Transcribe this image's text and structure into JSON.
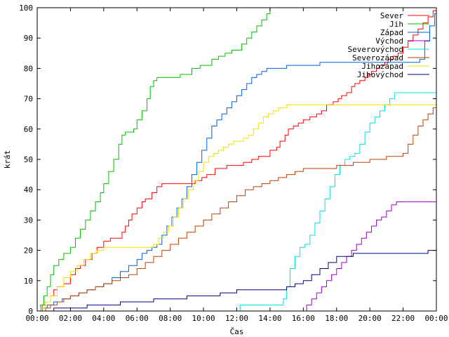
{
  "chart_data": {
    "type": "line",
    "xlabel": "Čas",
    "ylabel": "krát",
    "xlim": [
      0,
      24
    ],
    "ylim": [
      0,
      100
    ],
    "x_ticks": [
      {
        "v": 0,
        "label": "00:00"
      },
      {
        "v": 2,
        "label": "02:00"
      },
      {
        "v": 4,
        "label": "04:00"
      },
      {
        "v": 6,
        "label": "06:00"
      },
      {
        "v": 8,
        "label": "08:00"
      },
      {
        "v": 10,
        "label": "10:00"
      },
      {
        "v": 12,
        "label": "12:00"
      },
      {
        "v": 14,
        "label": "14:00"
      },
      {
        "v": 16,
        "label": "16:00"
      },
      {
        "v": 18,
        "label": "18:00"
      },
      {
        "v": 20,
        "label": "20:00"
      },
      {
        "v": 22,
        "label": "22:00"
      },
      {
        "v": 24,
        "label": "00:00"
      }
    ],
    "y_ticks": [
      0,
      10,
      20,
      30,
      40,
      50,
      60,
      70,
      80,
      90,
      100
    ],
    "grid": false,
    "legend_position": "top-right",
    "step": true,
    "series": [
      {
        "name": "Sever",
        "color": "#ff0000",
        "x": [
          0,
          0.2,
          0.3,
          0.5,
          0.8,
          1.0,
          1.2,
          1.6,
          2.0,
          2.3,
          2.6,
          2.9,
          3.3,
          3.6,
          4.0,
          4.4,
          4.8,
          5.1,
          5.3,
          5.5,
          5.7,
          6.0,
          6.3,
          6.5,
          6.9,
          7.2,
          7.5,
          8.2,
          9.1,
          9.5,
          9.9,
          10.2,
          10.7,
          11.4,
          12.0,
          12.4,
          12.9,
          13.3,
          14.0,
          14.4,
          14.6,
          14.9,
          15.1,
          15.4,
          15.7,
          16.0,
          16.4,
          16.8,
          17.1,
          17.4,
          17.8,
          18.1,
          18.3,
          18.6,
          18.9,
          19.1,
          19.4,
          19.7,
          19.9,
          20.1,
          20.4,
          20.6,
          20.9,
          21.1,
          21.4,
          21.7,
          22.0,
          22.3,
          22.6,
          22.9,
          23.2,
          23.5,
          23.8,
          24.0
        ],
        "y": [
          0,
          1,
          2,
          3,
          5,
          7,
          8,
          9,
          12,
          14,
          15,
          17,
          19,
          21,
          23,
          24,
          24,
          26,
          28,
          30,
          32,
          34,
          36,
          37,
          39,
          41,
          42,
          42,
          42,
          43,
          44,
          45,
          47,
          48,
          48,
          49,
          50,
          51,
          53,
          54,
          56,
          58,
          60,
          61,
          62,
          63,
          64,
          65,
          66,
          68,
          69,
          70,
          71,
          72,
          74,
          75,
          76,
          77,
          78,
          79,
          80,
          81,
          82,
          83,
          84,
          85,
          87,
          89,
          91,
          93,
          95,
          97,
          99,
          100
        ]
      },
      {
        "name": "Jih",
        "color": "#00c000",
        "x": [
          0,
          0.2,
          0.4,
          0.6,
          0.8,
          1.0,
          1.3,
          1.6,
          2.0,
          2.3,
          2.6,
          2.9,
          3.2,
          3.5,
          3.8,
          4.0,
          4.3,
          4.6,
          4.9,
          5.1,
          5.3,
          5.5,
          5.8,
          6.0,
          6.3,
          6.6,
          6.8,
          7.0,
          7.2,
          7.5,
          8.0,
          8.6,
          9.3,
          9.8,
          10.1,
          10.5,
          10.9,
          11.3,
          11.7,
          12.0,
          12.3,
          12.6,
          12.9,
          13.2,
          13.5,
          13.8,
          14.0
        ],
        "y": [
          0,
          2,
          5,
          8,
          12,
          15,
          17,
          19,
          21,
          24,
          27,
          30,
          33,
          36,
          39,
          42,
          46,
          50,
          55,
          58,
          59,
          59,
          60,
          63,
          66,
          70,
          74,
          76,
          77,
          77,
          77,
          78,
          80,
          81,
          81,
          83,
          84,
          85,
          86,
          86,
          88,
          90,
          92,
          94,
          96,
          98,
          100
        ]
      },
      {
        "name": "Západ",
        "color": "#0060e0",
        "x": [
          0,
          0.3,
          0.6,
          1.0,
          1.5,
          2.0,
          2.5,
          3.0,
          3.5,
          4.0,
          4.5,
          5.0,
          5.5,
          6.0,
          6.3,
          6.6,
          6.9,
          7.2,
          7.5,
          7.8,
          8.1,
          8.4,
          8.7,
          9.0,
          9.3,
          9.6,
          9.9,
          10.2,
          10.5,
          10.8,
          11.1,
          11.4,
          11.7,
          12.0,
          12.3,
          12.6,
          12.9,
          13.2,
          13.5,
          13.8,
          14.1,
          14.4,
          14.7,
          15.0,
          15.5,
          16.0,
          16.5,
          17.0,
          17.5,
          18.0,
          18.5,
          19.0,
          20.0,
          21.0,
          22.0,
          23.0,
          23.3,
          23.6,
          23.9,
          24.0
        ],
        "y": [
          0,
          1,
          2,
          3,
          4,
          5,
          6,
          7,
          8,
          9,
          11,
          13,
          15,
          17,
          19,
          20,
          21,
          22,
          25,
          28,
          31,
          34,
          37,
          41,
          45,
          49,
          53,
          57,
          61,
          63,
          65,
          67,
          69,
          71,
          73,
          75,
          77,
          78,
          79,
          80,
          80,
          80,
          80,
          81,
          81,
          81,
          81,
          82,
          82,
          82,
          82,
          82,
          82,
          82,
          82,
          83,
          89,
          94,
          98,
          100
        ]
      },
      {
        "name": "Východ",
        "color": "#a000d0",
        "x": [
          0,
          15.9,
          16.2,
          16.5,
          16.8,
          17.1,
          17.4,
          17.7,
          18.0,
          18.3,
          18.6,
          18.9,
          19.2,
          19.5,
          19.8,
          20.1,
          20.4,
          20.7,
          21.0,
          21.3,
          21.6,
          22.0,
          24.0
        ],
        "y": [
          0,
          0,
          2,
          4,
          6,
          8,
          10,
          12,
          14,
          16,
          18,
          20,
          22,
          24,
          26,
          28,
          30,
          31,
          33,
          35,
          36,
          36,
          36
        ]
      },
      {
        "name": "Severovýchod",
        "color": "#00e0e0",
        "x": [
          0,
          12.0,
          12.2,
          14.4,
          14.8,
          15.0,
          15.2,
          15.5,
          15.8,
          16.1,
          16.4,
          16.7,
          17.0,
          17.3,
          17.6,
          17.9,
          18.2,
          18.5,
          18.8,
          19.1,
          19.4,
          19.7,
          20.0,
          20.3,
          20.6,
          20.9,
          21.2,
          21.5,
          22.0,
          24.0
        ],
        "y": [
          0,
          0,
          2,
          2,
          4,
          8,
          14,
          18,
          21,
          22,
          25,
          29,
          33,
          37,
          41,
          45,
          48,
          50,
          51,
          52,
          55,
          59,
          62,
          64,
          66,
          68,
          70,
          72,
          72,
          72
        ]
      },
      {
        "name": "Severozápad",
        "color": "#c04000",
        "x": [
          0,
          0.5,
          0.8,
          1.2,
          1.6,
          2.0,
          2.5,
          3.0,
          3.5,
          4.0,
          4.5,
          5.0,
          5.5,
          6.0,
          6.5,
          7.0,
          7.5,
          8.0,
          8.5,
          9.0,
          9.5,
          10.0,
          10.5,
          11.0,
          11.5,
          12.0,
          12.5,
          13.0,
          13.5,
          14.0,
          14.5,
          15.0,
          15.5,
          16.0,
          17.0,
          18.0,
          19.0,
          20.0,
          21.0,
          22.0,
          22.3,
          22.6,
          22.9,
          23.2,
          23.5,
          23.8,
          24.0
        ],
        "y": [
          0,
          1,
          2,
          3,
          4,
          5,
          6,
          7,
          8,
          9,
          10,
          11,
          12,
          14,
          16,
          18,
          20,
          22,
          24,
          26,
          28,
          30,
          32,
          34,
          36,
          38,
          40,
          41,
          42,
          43,
          44,
          45,
          46,
          47,
          47,
          48,
          49,
          50,
          51,
          52,
          55,
          58,
          61,
          63,
          65,
          67,
          70
        ]
      },
      {
        "name": "Jihozápad",
        "color": "#f0e000",
        "x": [
          0,
          0.2,
          0.5,
          0.8,
          1.2,
          1.6,
          2.0,
          2.4,
          2.8,
          3.2,
          3.6,
          4.0,
          5.0,
          6.0,
          7.0,
          7.3,
          7.6,
          7.9,
          8.2,
          8.5,
          8.8,
          9.1,
          9.4,
          9.7,
          10.0,
          10.3,
          10.6,
          10.9,
          11.2,
          11.5,
          11.8,
          12.1,
          12.4,
          12.7,
          13.0,
          13.3,
          13.6,
          13.9,
          14.2,
          14.5,
          15.0,
          16.0,
          17.0,
          18.0,
          20.0,
          22.0,
          24.0
        ],
        "y": [
          0,
          1,
          3,
          5,
          8,
          11,
          13,
          15,
          17,
          19,
          20,
          21,
          21,
          21,
          22,
          24,
          26,
          28,
          31,
          34,
          37,
          40,
          43,
          46,
          49,
          51,
          52,
          53,
          54,
          55,
          56,
          56,
          57,
          58,
          60,
          62,
          64,
          65,
          66,
          67,
          68,
          68,
          68,
          68,
          68,
          68,
          68
        ]
      },
      {
        "name": "Jihovýchod",
        "color": "#000080",
        "x": [
          0,
          0.5,
          1.0,
          2.0,
          3.0,
          4.0,
          5.0,
          6.0,
          7.0,
          8.0,
          9.0,
          10.0,
          11.0,
          12.0,
          14.5,
          15.0,
          15.5,
          16.0,
          16.5,
          17.0,
          17.5,
          18.0,
          19.0,
          20.0,
          21.0,
          22.0,
          23.0,
          23.5,
          24.0
        ],
        "y": [
          0,
          0,
          1,
          1,
          2,
          2,
          3,
          3,
          4,
          4,
          5,
          5,
          6,
          7,
          7,
          8,
          9,
          10,
          12,
          14,
          16,
          18,
          19,
          19,
          19,
          19,
          19,
          20,
          22
        ]
      }
    ]
  }
}
